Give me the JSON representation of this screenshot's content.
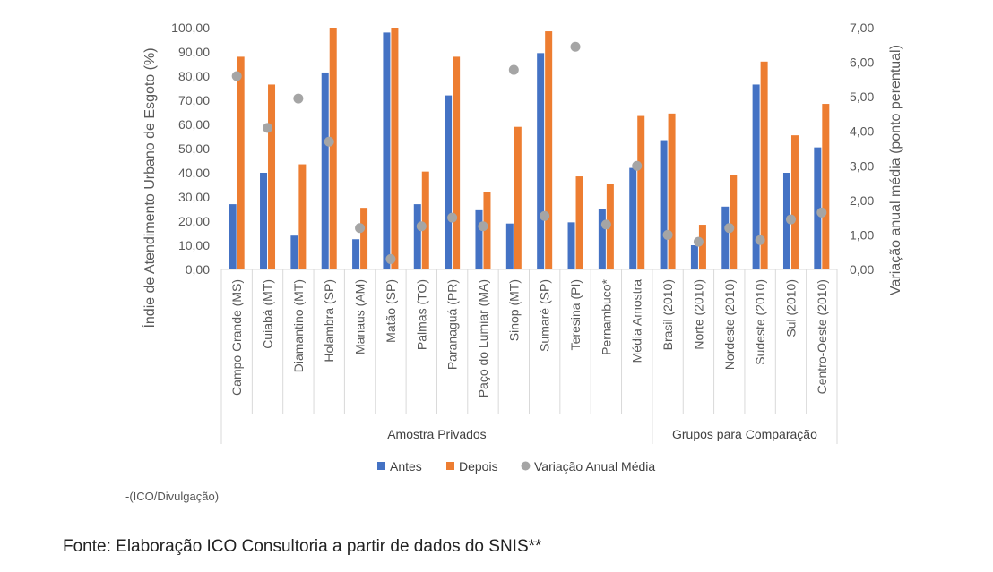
{
  "chart_data": {
    "type": "bar",
    "ylabel": "Índie de Atendimento Urbano de Esgoto (%)",
    "y2label": "Variação anual média (ponto perentual)",
    "ylim": [
      0,
      100
    ],
    "y2lim": [
      0,
      7
    ],
    "yticks": [
      "0,00",
      "10,00",
      "20,00",
      "30,00",
      "40,00",
      "50,00",
      "60,00",
      "70,00",
      "80,00",
      "90,00",
      "100,00"
    ],
    "y2ticks": [
      "0,00",
      "1,00",
      "2,00",
      "3,00",
      "4,00",
      "5,00",
      "6,00",
      "7,00"
    ],
    "categories": [
      "Campo Grande (MS)",
      "Cuiabá (MT)",
      "Diamantino (MT)",
      "Holambra (SP)",
      "Manaus (AM)",
      "Matão (SP)",
      "Palmas (TO)",
      "Paranaguá (PR)",
      "Paço do Lumiar (MA)",
      "Sinop (MT)",
      "Sumaré (SP)",
      "Teresina (PI)",
      "Pernambuco*",
      "Média Amostra",
      "Brasil (2010)",
      "Norte (2010)",
      "Nordeste (2010)",
      "Sudeste (2010)",
      "Sul (2010)",
      "Centro-Oeste (2010)"
    ],
    "groups": [
      {
        "label": "Amostra Privados",
        "count": 14
      },
      {
        "label": "Grupos para Comparação",
        "count": 6
      }
    ],
    "series": [
      {
        "name": "Antes",
        "type": "bar",
        "axis": "left",
        "color": "#4472C4",
        "values": [
          27,
          40,
          14,
          81.5,
          12.5,
          98,
          27,
          72,
          24.5,
          19,
          89.5,
          19.5,
          25,
          42,
          53.5,
          10,
          26,
          76.5,
          40,
          50.5
        ]
      },
      {
        "name": "Depois",
        "type": "bar",
        "axis": "left",
        "color": "#ED7D31",
        "values": [
          88,
          76.5,
          43.5,
          100,
          25.5,
          100,
          40.5,
          88,
          32,
          59,
          98.5,
          38.5,
          35.5,
          63.5,
          64.5,
          18.5,
          39,
          86,
          55.5,
          68.5
        ]
      },
      {
        "name": "Variação Anual Média",
        "type": "scatter",
        "axis": "right",
        "color": "#A5A5A5",
        "values": [
          5.6,
          4.1,
          4.95,
          3.7,
          1.2,
          0.3,
          1.25,
          1.5,
          1.25,
          5.78,
          1.55,
          6.45,
          1.3,
          3.0,
          1.0,
          0.8,
          1.2,
          0.85,
          1.45,
          1.65
        ]
      }
    ],
    "legend": "bottom",
    "grid": false
  },
  "caption": "-(ICO/Divulgação)",
  "source": "Fonte: Elaboração ICO Consultoria a partir de dados do SNIS**"
}
